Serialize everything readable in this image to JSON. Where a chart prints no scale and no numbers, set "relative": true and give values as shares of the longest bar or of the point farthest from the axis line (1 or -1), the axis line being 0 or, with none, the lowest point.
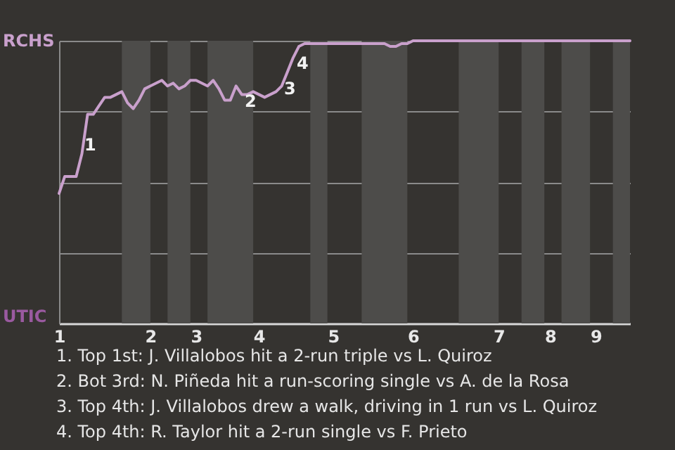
{
  "chart_data": {
    "type": "line",
    "relative": true,
    "categories": [
      "1",
      null,
      null,
      null,
      null,
      null,
      null,
      null,
      null,
      null,
      null,
      null,
      null,
      null,
      null,
      null,
      "2",
      null,
      null,
      null,
      null,
      null,
      null,
      null,
      "3",
      null,
      null,
      null,
      null,
      null,
      null,
      null,
      null,
      null,
      null,
      "4",
      null,
      null,
      null,
      null,
      null,
      null,
      null,
      null,
      null,
      null,
      null,
      null,
      "5",
      null,
      null,
      null,
      null,
      null,
      null,
      null,
      null,
      null,
      null,
      null,
      null,
      null,
      "6",
      null,
      null,
      null,
      null,
      null,
      null,
      null,
      null,
      null,
      null,
      null,
      null,
      null,
      null,
      "7",
      null,
      null,
      null,
      null,
      null,
      null,
      null,
      null,
      "8",
      null,
      null,
      null,
      null,
      null,
      null,
      null,
      "9",
      null,
      null,
      null,
      null,
      null,
      null
    ],
    "series": [
      {
        "color": "#c9a0cc",
        "values": [
          0.46,
          0.52,
          0.52,
          0.52,
          0.6,
          0.74,
          0.74,
          0.77,
          0.8,
          0.8,
          0.81,
          0.82,
          0.78,
          0.76,
          0.79,
          0.83,
          0.84,
          0.85,
          0.86,
          0.84,
          0.85,
          0.83,
          0.84,
          0.86,
          0.86,
          0.85,
          0.84,
          0.86,
          0.83,
          0.79,
          0.79,
          0.84,
          0.81,
          0.81,
          0.82,
          0.81,
          0.8,
          0.81,
          0.82,
          0.84,
          0.89,
          0.94,
          0.98,
          0.99,
          0.99,
          0.99,
          0.99,
          0.99,
          0.99,
          0.99,
          0.99,
          0.99,
          0.99,
          0.99,
          0.99,
          0.99,
          0.99,
          0.99,
          0.98,
          0.98,
          0.99,
          0.99,
          1,
          1,
          1,
          1,
          1,
          1,
          1,
          1,
          1,
          1,
          1,
          1,
          1,
          1,
          1,
          1,
          1,
          1,
          1,
          1,
          1,
          1,
          1,
          1,
          1,
          1,
          1,
          1,
          1,
          1,
          1,
          1,
          1,
          1,
          1,
          1,
          1,
          1,
          1
        ]
      }
    ],
    "grid": "y",
    "annotations": [
      "RCHS",
      "UTIC",
      "1",
      "2",
      "3",
      "4",
      "1. Top 1st: J. Villalobos hit a 2-run triple vs L. Quiroz",
      "2. Bot 3rd: N. Piñeda hit a run-scoring single vs A. de la Rosa",
      "3. Top 4th: J. Villalobos drew a walk, driving in 1 run vs L. Quiroz",
      "4. Top 4th: R. Taylor hit a 2-run single vs F. Prieto"
    ]
  }
}
